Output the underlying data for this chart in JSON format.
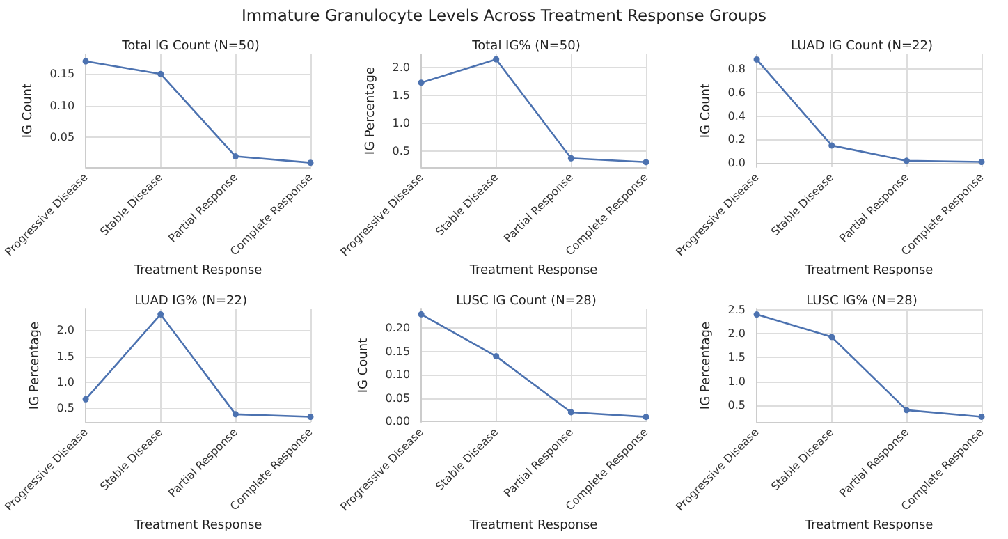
{
  "chart_data": [
    {
      "type": "line",
      "title": "Total IG Count (N=50)",
      "xlabel": "Treatment Response",
      "ylabel": "IG Count",
      "annotations": [
        "Immature Granulocyte Levels Across Treatment Response Groups"
      ],
      "categories": [
        "Progressive Disease",
        "Stable Disease",
        "Partial Response",
        "Complete Response"
      ],
      "series": [
        {
          "color": "#4c72b0",
          "values": [
            0.17,
            0.15,
            0.02,
            0.01
          ]
        }
      ],
      "ylim": [
        0.003,
        0.181
      ],
      "yticks": [
        {
          "value": 0.05,
          "label": "0.05"
        },
        {
          "value": 0.1,
          "label": "0.10"
        },
        {
          "value": 0.15,
          "label": "0.15"
        }
      ],
      "grid": true,
      "marker": "circle",
      "line_style": "solid"
    },
    {
      "type": "line",
      "title": "Total IG% (N=50)",
      "xlabel": "Treatment Response",
      "ylabel": "IG Percentage",
      "categories": [
        "Progressive Disease",
        "Stable Disease",
        "Partial Response",
        "Complete Response"
      ],
      "series": [
        {
          "color": "#4c72b0",
          "values": [
            1.73,
            2.15,
            0.37,
            0.3
          ]
        }
      ],
      "ylim": [
        0.21,
        2.24
      ],
      "yticks": [
        {
          "value": 0.5,
          "label": "0.5"
        },
        {
          "value": 1,
          "label": "1.0"
        },
        {
          "value": 1.5,
          "label": "1.5"
        },
        {
          "value": 2,
          "label": "2.0"
        }
      ],
      "grid": true,
      "marker": "circle",
      "line_style": "solid"
    },
    {
      "type": "line",
      "title": "LUAD IG Count (N=22)",
      "xlabel": "Treatment Response",
      "ylabel": "IG Count",
      "categories": [
        "Progressive Disease",
        "Stable Disease",
        "Partial Response",
        "Complete Response"
      ],
      "series": [
        {
          "color": "#4c72b0",
          "values": [
            0.88,
            0.15,
            0.02,
            0.01
          ]
        }
      ],
      "ylim": [
        -0.034,
        0.924
      ],
      "yticks": [
        {
          "value": 0,
          "label": "0.0"
        },
        {
          "value": 0.2,
          "label": "0.2"
        },
        {
          "value": 0.4,
          "label": "0.4"
        },
        {
          "value": 0.6,
          "label": "0.6"
        },
        {
          "value": 0.8,
          "label": "0.8"
        }
      ],
      "grid": true,
      "marker": "circle",
      "line_style": "solid"
    },
    {
      "type": "line",
      "title": "LUAD IG% (N=22)",
      "xlabel": "Treatment Response",
      "ylabel": "IG Percentage",
      "categories": [
        "Progressive Disease",
        "Stable Disease",
        "Partial Response",
        "Complete Response"
      ],
      "series": [
        {
          "color": "#4c72b0",
          "values": [
            0.67,
            2.31,
            0.38,
            0.33
          ]
        }
      ],
      "ylim": [
        0.23,
        2.41
      ],
      "yticks": [
        {
          "value": 0.5,
          "label": "0.5"
        },
        {
          "value": 1,
          "label": "1.0"
        },
        {
          "value": 1.5,
          "label": "1.5"
        },
        {
          "value": 2,
          "label": "2.0"
        }
      ],
      "grid": true,
      "marker": "circle",
      "line_style": "solid"
    },
    {
      "type": "line",
      "title": "LUSC IG Count (N=28)",
      "xlabel": "Treatment Response",
      "ylabel": "IG Count",
      "categories": [
        "Progressive Disease",
        "Stable Disease",
        "Partial Response",
        "Complete Response"
      ],
      "series": [
        {
          "color": "#4c72b0",
          "values": [
            0.23,
            0.14,
            0.02,
            0.01
          ]
        }
      ],
      "ylim": [
        -0.001,
        0.241
      ],
      "yticks": [
        {
          "value": 0,
          "label": "0.00"
        },
        {
          "value": 0.05,
          "label": "0.05"
        },
        {
          "value": 0.1,
          "label": "0.10"
        },
        {
          "value": 0.15,
          "label": "0.15"
        },
        {
          "value": 0.2,
          "label": "0.20"
        }
      ],
      "grid": true,
      "marker": "circle",
      "line_style": "solid"
    },
    {
      "type": "line",
      "title": "LUSC IG% (N=28)",
      "xlabel": "Treatment Response",
      "ylabel": "IG Percentage",
      "categories": [
        "Progressive Disease",
        "Stable Disease",
        "Partial Response",
        "Complete Response"
      ],
      "series": [
        {
          "color": "#4c72b0",
          "values": [
            2.4,
            1.93,
            0.4,
            0.26
          ]
        }
      ],
      "ylim": [
        0.15,
        2.51
      ],
      "yticks": [
        {
          "value": 0.5,
          "label": "0.5"
        },
        {
          "value": 1,
          "label": "1.0"
        },
        {
          "value": 1.5,
          "label": "1.5"
        },
        {
          "value": 2,
          "label": "2.0"
        },
        {
          "value": 2.5,
          "label": "2.5"
        }
      ],
      "grid": true,
      "marker": "circle",
      "line_style": "solid"
    }
  ]
}
